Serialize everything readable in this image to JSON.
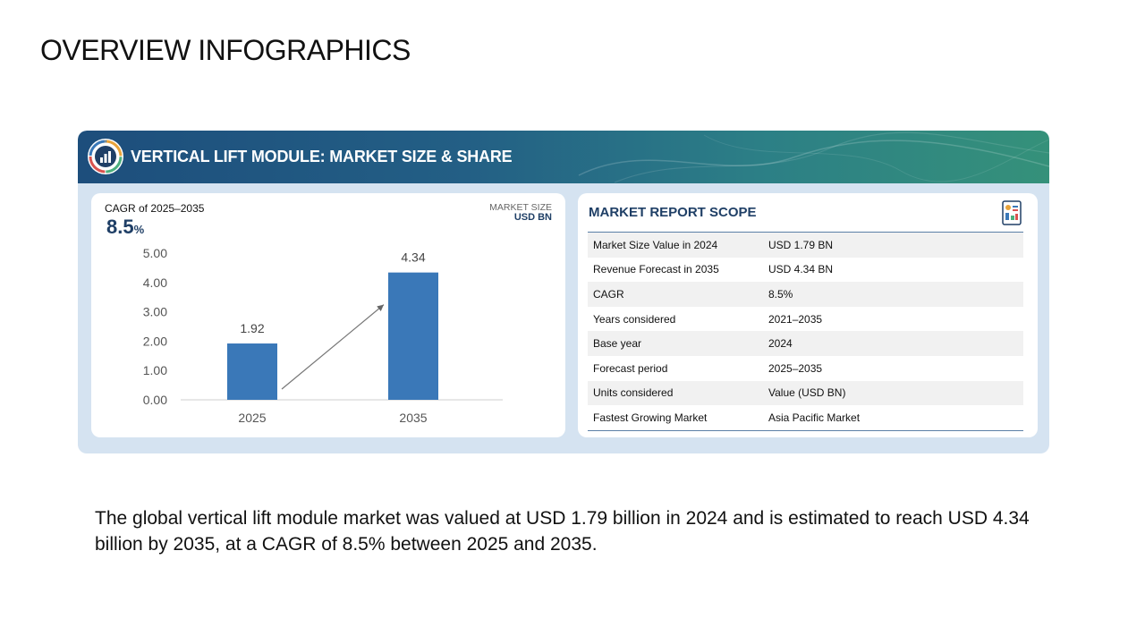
{
  "page": {
    "title": "OVERVIEW INFOGRAPHICS",
    "summary": "The global vertical lift module market was valued at USD 1.79 billion in 2024 and is estimated to reach USD 4.34 billion by 2035, at a CAGR of 8.5% between 2025 and 2035."
  },
  "banner": {
    "title": "VERTICAL LIFT MODULE: MARKET SIZE & SHARE",
    "logo_icon": "bar-chart-gauge-icon"
  },
  "cagr": {
    "label": "CAGR of 2025–2035",
    "value": "8.5",
    "unit": "%"
  },
  "market_size": {
    "label": "MARKET SIZE",
    "unit": "USD BN"
  },
  "chart_data": {
    "type": "bar",
    "categories": [
      "2025",
      "2035"
    ],
    "values": [
      1.92,
      4.34
    ],
    "data_labels": [
      "1.92",
      "4.34"
    ],
    "y_ticks": [
      "0.00",
      "1.00",
      "2.00",
      "3.00",
      "4.00",
      "5.00"
    ],
    "ylim": [
      0,
      5
    ],
    "grid": false,
    "trend_arrow": true,
    "bar_color": "#3a78b8",
    "title": "",
    "xlabel": "",
    "ylabel": ""
  },
  "scope": {
    "title": "MARKET REPORT SCOPE",
    "icon": "report-document-icon",
    "rows": [
      {
        "key": "Market Size Value in 2024",
        "value": "USD 1.79 BN"
      },
      {
        "key": "Revenue Forecast in 2035",
        "value": "USD 4.34 BN"
      },
      {
        "key": "CAGR",
        "value": "8.5%"
      },
      {
        "key": "Years considered",
        "value": "2021–2035"
      },
      {
        "key": "Base year",
        "value": "2024"
      },
      {
        "key": "Forecast period",
        "value": "2025–2035"
      },
      {
        "key": "Units considered",
        "value": "Value (USD BN)"
      },
      {
        "key": "Fastest Growing Market",
        "value": "Asia Pacific Market"
      }
    ]
  },
  "colors": {
    "accent": "#1f3f66",
    "panel_bg": "#d5e3f1",
    "bar": "#3a78b8"
  }
}
